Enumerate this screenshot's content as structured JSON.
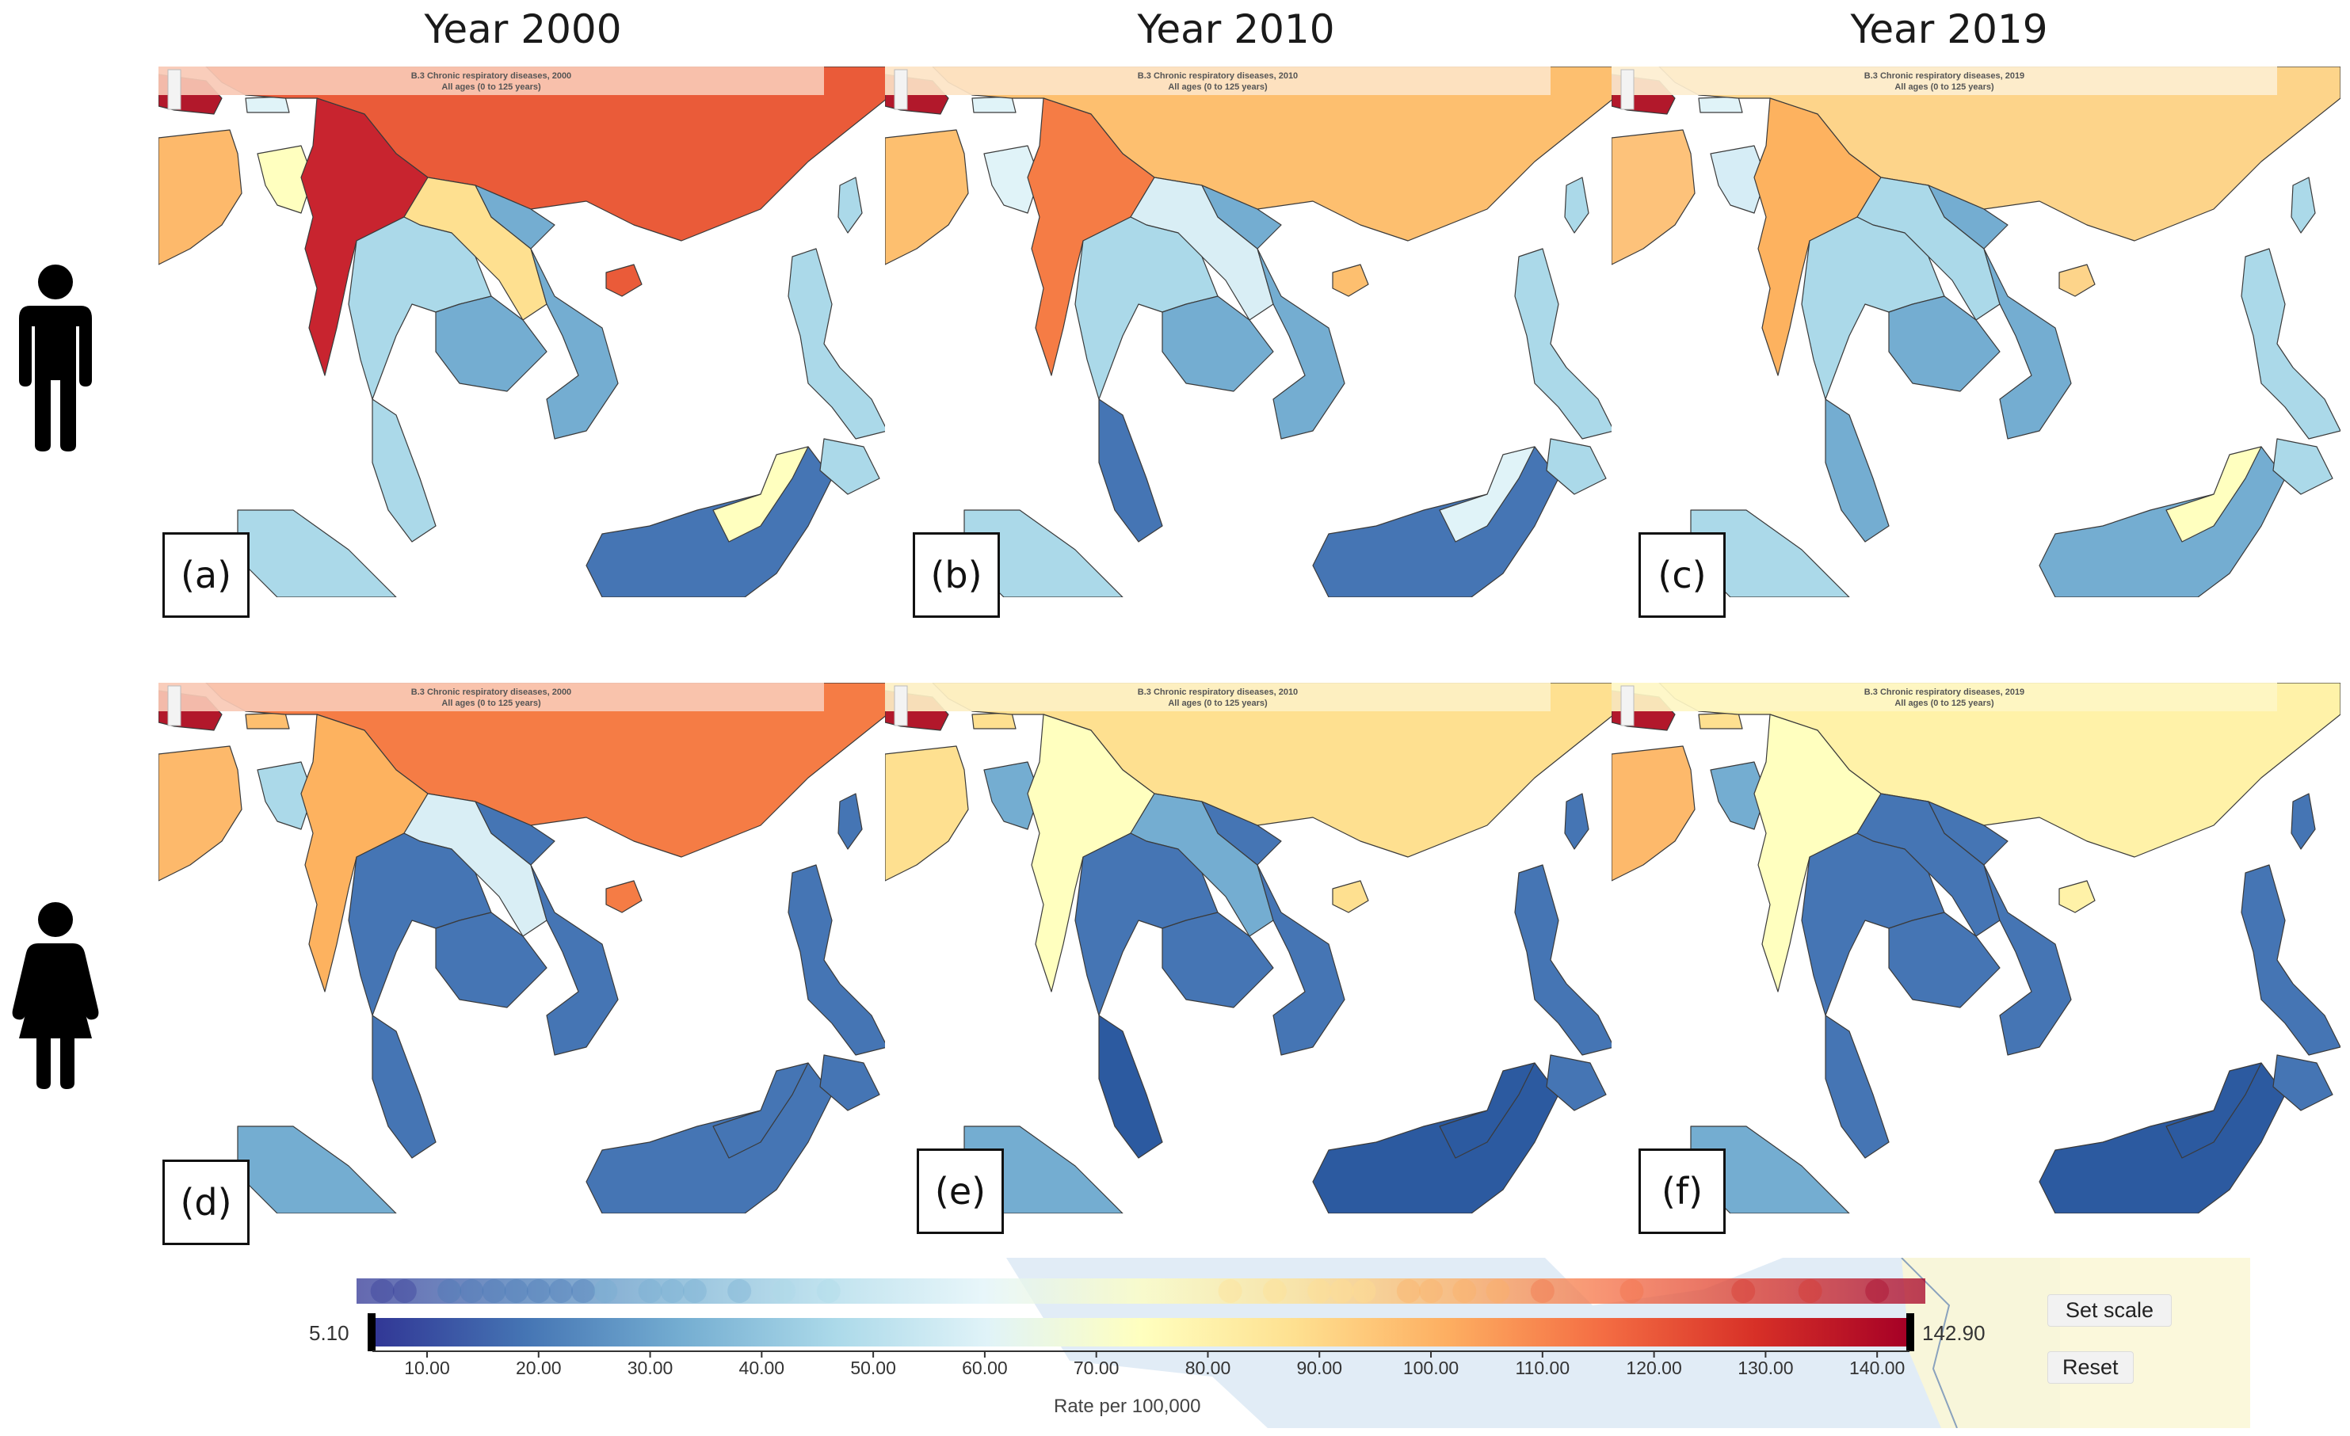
{
  "column_titles": [
    "Year 2000",
    "Year 2010",
    "Year 2019"
  ],
  "rows": [
    {
      "sex": "male",
      "icon": "male-person-icon"
    },
    {
      "sex": "female",
      "icon": "female-person-icon"
    }
  ],
  "panels": [
    {
      "label": "(a)",
      "title_line1": "B.3 Chronic respiratory diseases, 2000",
      "title_line2": "All ages (0 to 125 years)",
      "banner_color": "#f8c9b5",
      "colors": {
        "nepal": "#b2182b",
        "india": "#fdb96b",
        "bhutan": "#e0f3f8",
        "bangladesh": "#ffffbf",
        "china": "#ea5b39",
        "myanmar": "#c8242f",
        "laos": "#fee090",
        "thailand": "#abd9e9",
        "cambodia": "#74add1",
        "vietnam": "#74add1",
        "hainan": "#ea5b39",
        "taiwan": "#abd9e9",
        "malaysia": "#abd9e9",
        "sumatra": "#abd9e9",
        "borneo": "#4575b4",
        "sabah": "#ffffbf",
        "philippines": "#abd9e9"
      }
    },
    {
      "label": "(b)",
      "title_line1": "B.3 Chronic respiratory diseases, 2010",
      "title_line2": "All ages (0 to 125 years)",
      "banner_color": "#fde4c6",
      "colors": {
        "nepal": "#b2182b",
        "india": "#fdbf6f",
        "bhutan": "#e0f3f8",
        "bangladesh": "#e0f3f8",
        "china": "#fdbf6f",
        "myanmar": "#f57c45",
        "laos": "#d9eef5",
        "thailand": "#abd9e9",
        "cambodia": "#74add1",
        "vietnam": "#74add1",
        "hainan": "#fdbf6f",
        "taiwan": "#abd9e9",
        "malaysia": "#4575b4",
        "sumatra": "#abd9e9",
        "borneo": "#4575b4",
        "sabah": "#e0f3f8",
        "philippines": "#abd9e9"
      }
    },
    {
      "label": "(c)",
      "title_line1": "B.3 Chronic respiratory diseases, 2019",
      "title_line2": "All ages (0 to 125 years)",
      "banner_color": "#fdeed0",
      "colors": {
        "nepal": "#b2182b",
        "india": "#fdc27a",
        "bhutan": "#e0f3f8",
        "bangladesh": "#d6edf6",
        "china": "#fdd48a",
        "myanmar": "#fdb25f",
        "laos": "#abd9e9",
        "thailand": "#abd9e9",
        "cambodia": "#74add1",
        "vietnam": "#74add1",
        "hainan": "#fdd48a",
        "taiwan": "#abd9e9",
        "malaysia": "#74add1",
        "sumatra": "#abd9e9",
        "borneo": "#74add1",
        "sabah": "#ffffbf",
        "philippines": "#abd9e9"
      }
    },
    {
      "label": "(d)",
      "title_line1": "B.3 Chronic respiratory diseases, 2000",
      "title_line2": "All ages (0 to 125 years)",
      "banner_color": "#f8c9b5",
      "colors": {
        "nepal": "#b2182b",
        "india": "#fdb96b",
        "bhutan": "#fdbf6f",
        "bangladesh": "#abd9e9",
        "china": "#f57c45",
        "myanmar": "#fdb25f",
        "laos": "#d9eef5",
        "thailand": "#4575b4",
        "cambodia": "#4575b4",
        "vietnam": "#4575b4",
        "hainan": "#f57c45",
        "taiwan": "#4575b4",
        "malaysia": "#4575b4",
        "sumatra": "#74add1",
        "borneo": "#4575b4",
        "sabah": "#4575b4",
        "philippines": "#4575b4"
      }
    },
    {
      "label": "(e)",
      "title_line1": "B.3 Chronic respiratory diseases, 2010",
      "title_line2": "All ages (0 to 125 years)",
      "banner_color": "#fdf0c4",
      "colors": {
        "nepal": "#b2182b",
        "india": "#fee090",
        "bhutan": "#fee090",
        "bangladesh": "#74add1",
        "china": "#fee090",
        "myanmar": "#ffffbf",
        "laos": "#74add1",
        "thailand": "#4575b4",
        "cambodia": "#4575b4",
        "vietnam": "#4575b4",
        "hainan": "#fee090",
        "taiwan": "#4575b4",
        "malaysia": "#2c5aa0",
        "sumatra": "#74add1",
        "borneo": "#2c5aa0",
        "sabah": "#2c5aa0",
        "philippines": "#4575b4"
      }
    },
    {
      "label": "(f)",
      "title_line1": "B.3 Chronic respiratory diseases, 2019",
      "title_line2": "All ages (0 to 125 years)",
      "banner_color": "#fef6c4",
      "colors": {
        "nepal": "#b2182b",
        "india": "#fdb96b",
        "bhutan": "#fee090",
        "bangladesh": "#74add1",
        "china": "#fff2a8",
        "myanmar": "#ffffbf",
        "laos": "#4575b4",
        "thailand": "#4575b4",
        "cambodia": "#4575b4",
        "vietnam": "#4575b4",
        "hainan": "#fff2a8",
        "taiwan": "#4575b4",
        "malaysia": "#4575b4",
        "sumatra": "#74add1",
        "borneo": "#2c5aa0",
        "sabah": "#2c5aa0",
        "philippines": "#4575b4"
      }
    }
  ],
  "legend": {
    "min_label": "5.10",
    "max_label": "142.90",
    "min": 5.1,
    "max": 142.9,
    "ticks": [
      "10.00",
      "20.00",
      "30.00",
      "40.00",
      "50.00",
      "60.00",
      "70.00",
      "80.00",
      "90.00",
      "100.00",
      "110.00",
      "120.00",
      "130.00",
      "140.00"
    ],
    "axis_title": "Rate per 100,000",
    "set_scale_label": "Set scale",
    "reset_label": "Reset",
    "gradient_colors": [
      "#313695",
      "#4575b4",
      "#74add1",
      "#abd9e9",
      "#e0f3f8",
      "#ffffbf",
      "#fee090",
      "#fdae61",
      "#f46d43",
      "#d73027",
      "#a50026"
    ],
    "dot_values": [
      6,
      8,
      12,
      14,
      16,
      18,
      20,
      22,
      24,
      26,
      30,
      32,
      34,
      38,
      42,
      46,
      82,
      86,
      90,
      92,
      94,
      98,
      100,
      103,
      106,
      110,
      118,
      128,
      134,
      140
    ]
  }
}
